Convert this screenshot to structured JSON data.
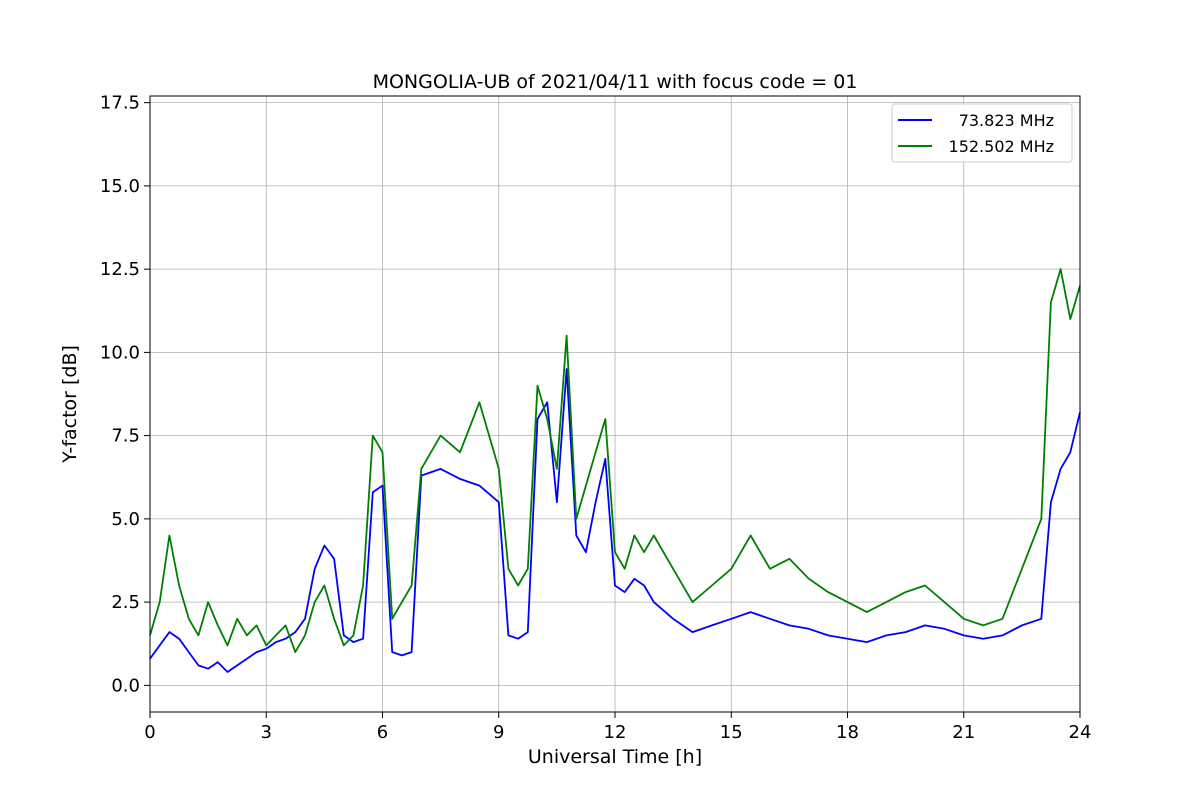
{
  "chart_data": {
    "type": "line",
    "title": "MONGOLIA-UB of 2021/04/11 with focus code = 01",
    "xlabel": "Universal Time [h]",
    "ylabel": "Y-factor [dB]",
    "xlim": [
      0,
      24
    ],
    "ylim": [
      -0.8,
      17.7
    ],
    "xticks": [
      0,
      3,
      6,
      9,
      12,
      15,
      18,
      21,
      24
    ],
    "yticks": [
      0.0,
      2.5,
      5.0,
      7.5,
      10.0,
      12.5,
      15.0,
      17.5
    ],
    "xtick_labels": [
      "0",
      "3",
      "6",
      "9",
      "12",
      "15",
      "18",
      "21",
      "24"
    ],
    "ytick_labels": [
      "0.0",
      "2.5",
      "5.0",
      "7.5",
      "10.0",
      "12.5",
      "15.0",
      "17.5"
    ],
    "grid": true,
    "legend_position": "top-right",
    "series": [
      {
        "name": "73.823 MHz",
        "color": "#0000ff",
        "x": [
          0,
          0.25,
          0.5,
          0.75,
          1,
          1.25,
          1.5,
          1.75,
          2,
          2.25,
          2.5,
          2.75,
          3,
          3.25,
          3.5,
          3.75,
          4,
          4.25,
          4.5,
          4.75,
          5,
          5.25,
          5.5,
          5.75,
          6,
          6.25,
          6.5,
          6.75,
          7,
          7.5,
          8,
          8.5,
          9,
          9.25,
          9.5,
          9.75,
          10,
          10.25,
          10.5,
          10.75,
          11,
          11.25,
          11.5,
          11.75,
          12,
          12.25,
          12.5,
          12.75,
          13,
          13.5,
          14,
          14.5,
          15,
          15.5,
          16,
          16.5,
          17,
          17.5,
          18,
          18.5,
          19,
          19.5,
          20,
          20.5,
          21,
          21.5,
          22,
          22.5,
          23,
          23.25,
          23.5,
          23.75,
          24
        ],
        "y": [
          0.8,
          1.2,
          1.6,
          1.4,
          1.0,
          0.6,
          0.5,
          0.7,
          0.4,
          0.6,
          0.8,
          1.0,
          1.1,
          1.3,
          1.4,
          1.6,
          2.0,
          3.5,
          4.2,
          3.8,
          1.5,
          1.3,
          1.4,
          5.8,
          6.0,
          1.0,
          0.9,
          1.0,
          6.3,
          6.5,
          6.2,
          6.0,
          5.5,
          1.5,
          1.4,
          1.6,
          8.0,
          8.5,
          5.5,
          9.5,
          4.5,
          4.0,
          5.5,
          6.8,
          3.0,
          2.8,
          3.2,
          3.0,
          2.5,
          2.0,
          1.6,
          1.8,
          2.0,
          2.2,
          2.0,
          1.8,
          1.7,
          1.5,
          1.4,
          1.3,
          1.5,
          1.6,
          1.8,
          1.7,
          1.5,
          1.4,
          1.5,
          1.8,
          2.0,
          5.5,
          6.5,
          7.0,
          8.2
        ]
      },
      {
        "name": "152.502 MHz",
        "color": "#008000",
        "x": [
          0,
          0.25,
          0.5,
          0.75,
          1,
          1.25,
          1.5,
          1.75,
          2,
          2.25,
          2.5,
          2.75,
          3,
          3.25,
          3.5,
          3.75,
          4,
          4.25,
          4.5,
          4.75,
          5,
          5.25,
          5.5,
          5.75,
          6,
          6.25,
          6.5,
          6.75,
          7,
          7.5,
          8,
          8.5,
          9,
          9.25,
          9.5,
          9.75,
          10,
          10.25,
          10.5,
          10.75,
          11,
          11.25,
          11.5,
          11.75,
          12,
          12.25,
          12.5,
          12.75,
          13,
          13.5,
          14,
          14.5,
          15,
          15.5,
          16,
          16.5,
          17,
          17.5,
          18,
          18.5,
          19,
          19.5,
          20,
          20.5,
          21,
          21.5,
          22,
          22.5,
          23,
          23.25,
          23.5,
          23.75,
          24
        ],
        "y": [
          1.5,
          2.5,
          4.5,
          3.0,
          2.0,
          1.5,
          2.5,
          1.8,
          1.2,
          2.0,
          1.5,
          1.8,
          1.2,
          1.5,
          1.8,
          1.0,
          1.5,
          2.5,
          3.0,
          2.0,
          1.2,
          1.5,
          3.0,
          7.5,
          7.0,
          2.0,
          2.5,
          3.0,
          6.5,
          7.5,
          7.0,
          8.5,
          6.5,
          3.5,
          3.0,
          3.5,
          9.0,
          8.0,
          6.5,
          10.5,
          5.0,
          6.0,
          7.0,
          8.0,
          4.0,
          3.5,
          4.5,
          4.0,
          4.5,
          3.5,
          2.5,
          3.0,
          3.5,
          4.5,
          3.5,
          3.8,
          3.2,
          2.8,
          2.5,
          2.2,
          2.5,
          2.8,
          3.0,
          2.5,
          2.0,
          1.8,
          2.0,
          3.5,
          5.0,
          11.5,
          12.5,
          11.0,
          12.0
        ]
      }
    ]
  }
}
